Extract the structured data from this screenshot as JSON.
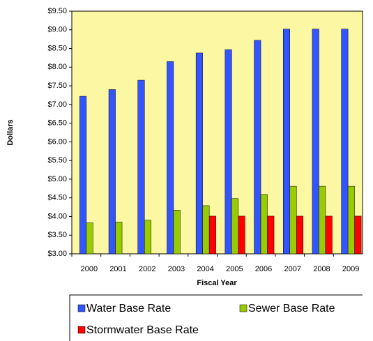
{
  "chart_data": {
    "type": "bar",
    "y_label": "Dollars",
    "x_label": "Fiscal Year",
    "categories": [
      "2000",
      "2001",
      "2002",
      "2003",
      "2004",
      "2005",
      "2006",
      "2007",
      "2008",
      "2009"
    ],
    "series": [
      {
        "name": "Water Base Rate",
        "color": "#3355ff",
        "values": [
          7.22,
          7.4,
          7.65,
          8.15,
          8.38,
          8.47,
          8.72,
          9.02,
          9.02,
          9.02
        ]
      },
      {
        "name": "Sewer Base Rate",
        "color": "#99cc00",
        "values": [
          3.83,
          3.85,
          3.9,
          4.17,
          4.29,
          4.48,
          4.59,
          4.81,
          4.81,
          4.81
        ]
      },
      {
        "name": "Stormwater Base Rate",
        "color": "#ff0000",
        "values": [
          null,
          null,
          null,
          null,
          4.01,
          4.01,
          4.01,
          4.01,
          4.01,
          4.01
        ]
      }
    ],
    "ylim": [
      3.0,
      9.5
    ],
    "yticks": [
      {
        "value": 3.0,
        "label": "$3.00"
      },
      {
        "value": 3.5,
        "label": "$3.50"
      },
      {
        "value": 4.0,
        "label": "$4.00"
      },
      {
        "value": 4.5,
        "label": "$4.50"
      },
      {
        "value": 5.0,
        "label": "$5.00"
      },
      {
        "value": 5.5,
        "label": "$5.50"
      },
      {
        "value": 6.0,
        "label": "$6.00"
      },
      {
        "value": 6.5,
        "label": "$6.50"
      },
      {
        "value": 7.0,
        "label": "$7.00"
      },
      {
        "value": 7.5,
        "label": "$7.50"
      },
      {
        "value": 8.0,
        "label": "$8.00"
      },
      {
        "value": 8.5,
        "label": "$8.50"
      },
      {
        "value": 9.0,
        "label": "$9.00"
      },
      {
        "value": 9.5,
        "label": "$9.50"
      }
    ],
    "grid": false,
    "legend": "bottom"
  }
}
